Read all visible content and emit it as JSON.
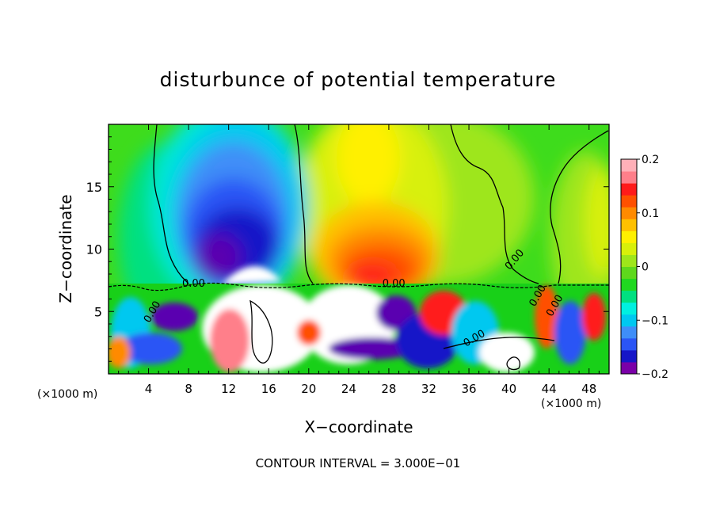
{
  "chart_data": {
    "type": "heatmap",
    "title": "disturbunce of potential temperature",
    "xlabel": "X−coordinate",
    "ylabel": "Z−coordinate",
    "x_unit": "(×1000 m)",
    "z_unit": "(×1000 m)",
    "xlim": [
      0,
      50
    ],
    "ylim": [
      0,
      20
    ],
    "x_ticks": [
      4,
      8,
      12,
      16,
      20,
      24,
      28,
      32,
      36,
      40,
      44,
      48
    ],
    "y_ticks": [
      5,
      10,
      15
    ],
    "colorbar": {
      "min": -0.2,
      "max": 0.2,
      "tick_values": [
        0.2,
        0.1,
        0,
        -0.1,
        -0.2
      ],
      "tick_labels": [
        "0.2",
        "0.1",
        "0",
        "−0.1",
        "−0.2"
      ],
      "colors": [
        "#7a00a8",
        "#1616c8",
        "#2b55f5",
        "#3f8ef8",
        "#00c8f0",
        "#00f0e0",
        "#00e080",
        "#20d820",
        "#5ed81c",
        "#9ee61a",
        "#d8f00a",
        "#fff000",
        "#ffc000",
        "#ff8a00",
        "#ff5000",
        "#ff1a1a",
        "#ff7f8a",
        "#ffb0b8"
      ]
    },
    "contour_labels": [
      "0.00",
      "0.00",
      "0.00",
      "0.00",
      "0.00",
      "0.00",
      "0.00"
    ],
    "features": [
      {
        "kind": "cold anomaly",
        "x": 13,
        "z": 11,
        "value": -0.15
      },
      {
        "kind": "warm anomaly",
        "x": 28,
        "z": 9,
        "value": 0.12
      },
      {
        "kind": "warm anomaly",
        "x": 26,
        "z": 18,
        "value": 0.08
      },
      {
        "kind": "warm anomaly",
        "x": 50,
        "z": 12,
        "value": 0.06
      },
      {
        "kind": "turbulent layer",
        "z_top": 7.3
      }
    ]
  },
  "footer": {
    "contour_interval": "CONTOUR INTERVAL = 3.000E−01"
  }
}
